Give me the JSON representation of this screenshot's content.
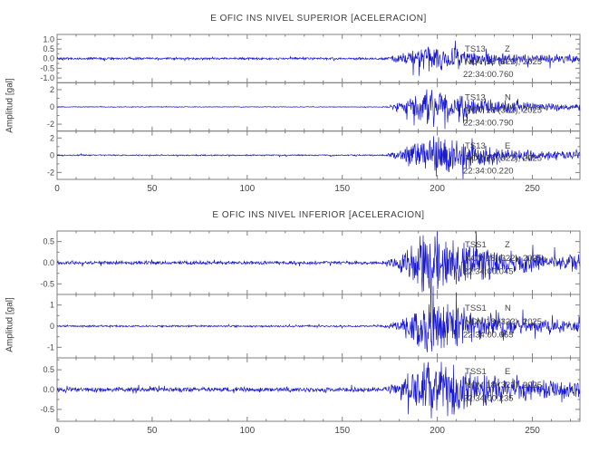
{
  "chart_data": [
    {
      "type": "line",
      "title": "E OFIC INS NIVEL SUPERIOR [ACELERACION]",
      "ylabel": "Amplitud [gal]",
      "xlim": [
        0,
        275
      ],
      "x_ticks": [
        0,
        50,
        100,
        150,
        200,
        250
      ],
      "x_minor_step": 10,
      "x_major_step": 50,
      "grid": false,
      "legend": "none",
      "signal_color": "#1a1acd",
      "axis_color": "#7f7f7f",
      "text_color": "#454545",
      "event": {
        "onset_x": 170,
        "peak_x": 196,
        "decay_tau": 27
      },
      "traces": [
        {
          "station": "TS13",
          "component": "Z",
          "date": "NOV 18 (322), 2025",
          "time": "22:34:00.760",
          "y_ticks": [
            1.0,
            0.5,
            0.0,
            -0.5,
            -1.0
          ],
          "y_tick_labels": [
            "1.0",
            "0.5",
            "0.0",
            "-0.5",
            "-1.0"
          ],
          "ylim": [
            -1.25,
            1.25
          ],
          "quiet_amp": 0.07,
          "peak_amp": 0.95
        },
        {
          "station": "TS13",
          "component": "N",
          "date": "NOV 18 (322), 2025",
          "time": "22:34:00.790",
          "y_ticks": [
            2,
            0,
            -2
          ],
          "y_tick_labels": [
            "2",
            "0",
            "-2"
          ],
          "ylim": [
            -2.8,
            2.8
          ],
          "quiet_amp": 0.05,
          "peak_amp": 2.7
        },
        {
          "station": "TS13",
          "component": "E",
          "date": "NOV 18 (322), 2025",
          "time": "22:34:00.220",
          "y_ticks": [
            2,
            0,
            -2
          ],
          "y_tick_labels": [
            "2",
            "0",
            "-2"
          ],
          "ylim": [
            -2.8,
            2.8
          ],
          "quiet_amp": 0.09,
          "peak_amp": 3.1
        }
      ]
    },
    {
      "type": "line",
      "title": "E OFIC INS NIVEL INFERIOR [ACELERACION]",
      "ylabel": "Amplitud [gal]",
      "xlim": [
        0,
        275
      ],
      "x_ticks": [
        0,
        50,
        100,
        150,
        200,
        250
      ],
      "x_minor_step": 10,
      "x_major_step": 50,
      "grid": false,
      "legend": "none",
      "signal_color": "#1a1acd",
      "axis_color": "#7f7f7f",
      "text_color": "#454545",
      "event": {
        "onset_x": 170,
        "peak_x": 196,
        "decay_tau": 27
      },
      "traces": [
        {
          "station": "TSS1",
          "component": "Z",
          "date": "NOV 18 (322), 2025",
          "time": "22:34:00.045",
          "y_ticks": [
            0.5,
            0.0,
            -0.5
          ],
          "y_tick_labels": [
            "0.5",
            "0.0",
            "-0.5"
          ],
          "ylim": [
            -0.75,
            0.75
          ],
          "quiet_amp": 0.05,
          "peak_amp": 0.95
        },
        {
          "station": "TSS1",
          "component": "N",
          "date": "NOV 18 (322), 2025",
          "time": "22:34:00.665",
          "y_ticks": [
            1,
            0,
            -1
          ],
          "y_tick_labels": [
            "1",
            "0",
            "-1"
          ],
          "ylim": [
            -1.5,
            1.5
          ],
          "quiet_amp": 0.05,
          "peak_amp": 1.7
        },
        {
          "station": "TSS1",
          "component": "E",
          "date": "NOV 18 (322), 2025",
          "time": "22:34:00.235",
          "y_ticks": [
            0.5,
            0.0,
            -0.5
          ],
          "y_tick_labels": [
            "0.5",
            "0.0",
            "-0.5"
          ],
          "ylim": [
            -0.8,
            0.8
          ],
          "quiet_amp": 0.07,
          "peak_amp": 1.0
        }
      ]
    }
  ]
}
